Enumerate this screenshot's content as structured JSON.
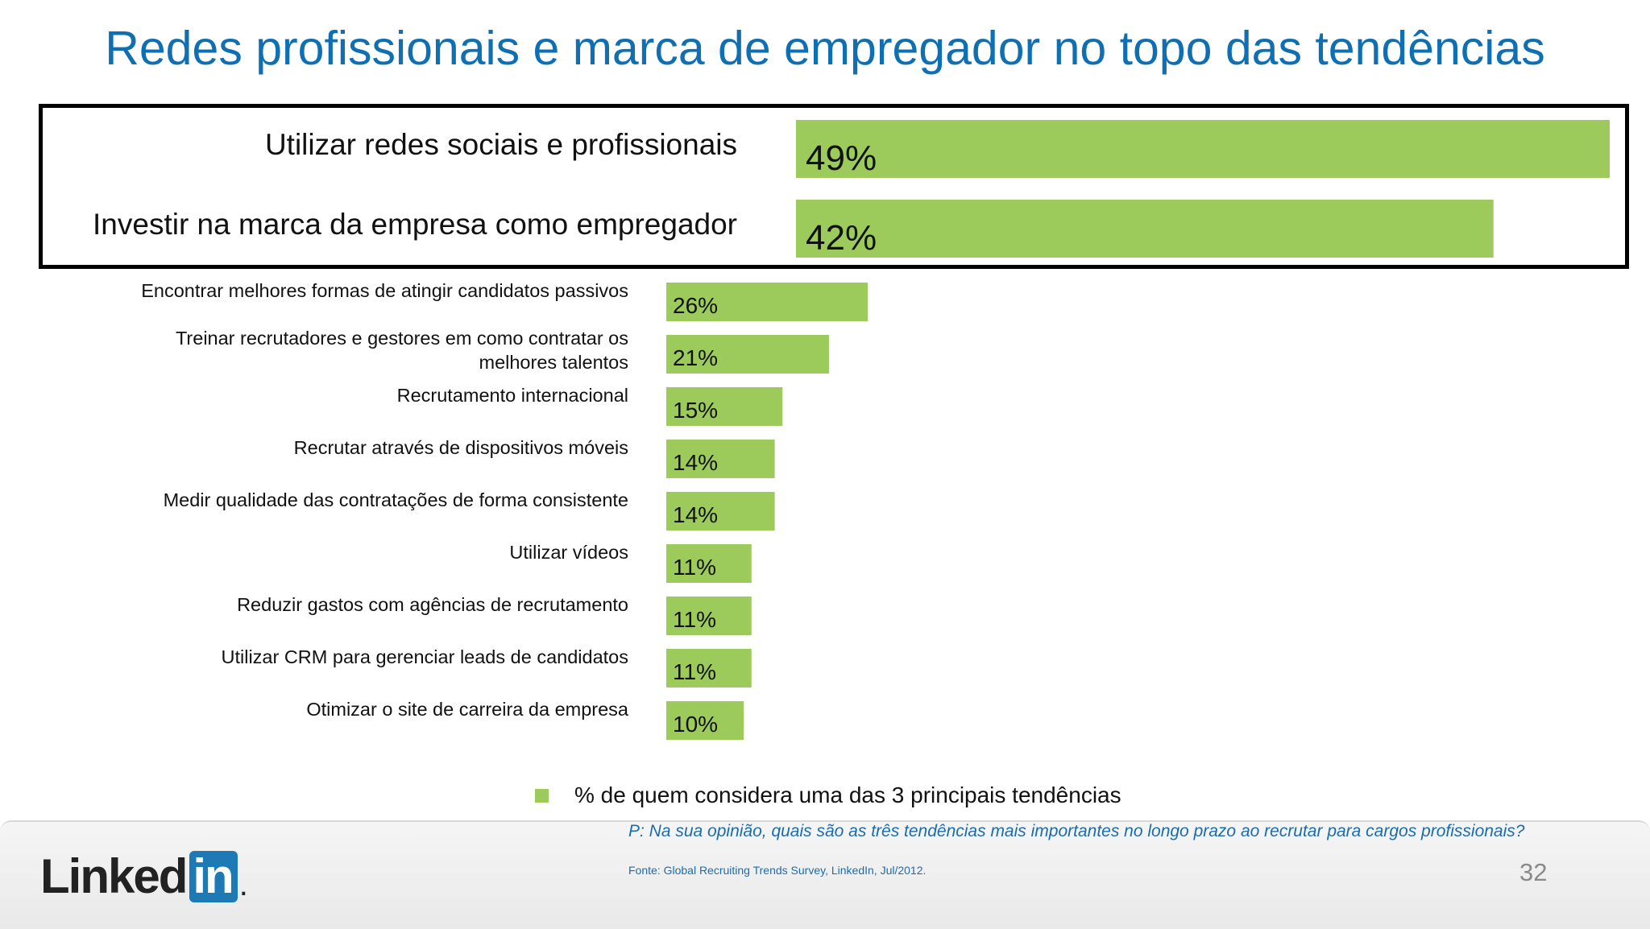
{
  "slide": {
    "title": "Redes profissionais e marca de empregador no topo das tendências",
    "page_number": "32"
  },
  "colors": {
    "title": "#0f6fb3",
    "bar": "#9dcb5b",
    "note": "#1a6cb0"
  },
  "chart_data": {
    "type": "bar",
    "orientation": "horizontal",
    "categories": [
      "Utilizar redes sociais e profissionais",
      "Investir na marca da empresa como empregador",
      "Encontrar melhores formas de atingir candidatos passivos",
      "Treinar recrutadores e gestores em como contratar os melhores talentos",
      "Recrutamento internacional",
      "Recrutar através de dispositivos móveis",
      "Medir qualidade das contratações de forma consistente",
      "Utilizar vídeos",
      "Reduzir gastos com agências de recrutamento",
      "Utilizar CRM para gerenciar leads de candidatos",
      "Otimizar o site de carreira da empresa"
    ],
    "category_lines": [
      [
        "Utilizar redes sociais e profissionais"
      ],
      [
        "Investir na marca da empresa como empregador"
      ],
      [
        "Encontrar melhores formas de atingir candidatos passivos"
      ],
      [
        "Treinar recrutadores e gestores em como contratar os",
        "melhores talentos"
      ],
      [
        "Recrutamento internacional"
      ],
      [
        "Recrutar através de dispositivos móveis"
      ],
      [
        "Medir qualidade das contratações de forma consistente"
      ],
      [
        "Utilizar vídeos"
      ],
      [
        "Reduzir gastos com agências de recrutamento"
      ],
      [
        "Utilizar CRM para gerenciar leads de candidatos"
      ],
      [
        "Otimizar o site de carreira da empresa"
      ]
    ],
    "values": [
      49,
      42,
      26,
      21,
      15,
      14,
      14,
      11,
      11,
      11,
      10
    ],
    "value_labels": [
      "49%",
      "42%",
      "26%",
      "21%",
      "15%",
      "14%",
      "14%",
      "11%",
      "11%",
      "11%",
      "10%"
    ],
    "series": [
      {
        "name": "% de quem considera uma das 3 principais tendências",
        "color": "#9dcb5b"
      }
    ],
    "highlighted": [
      0,
      1
    ],
    "legend": "bottom",
    "grid": false
  },
  "legend": {
    "label": "% de quem considera uma das 3 principais tendências"
  },
  "footer": {
    "question": "P: Na sua opinião, quais são as três tendências mais importantes no longo prazo ao recrutar para cargos profissionais?",
    "source": "Fonte: Global Recruiting Trends Survey, LinkedIn, Jul/2012.",
    "logo_text": "Linked",
    "logo_box": "in",
    "logo_dot": "."
  }
}
